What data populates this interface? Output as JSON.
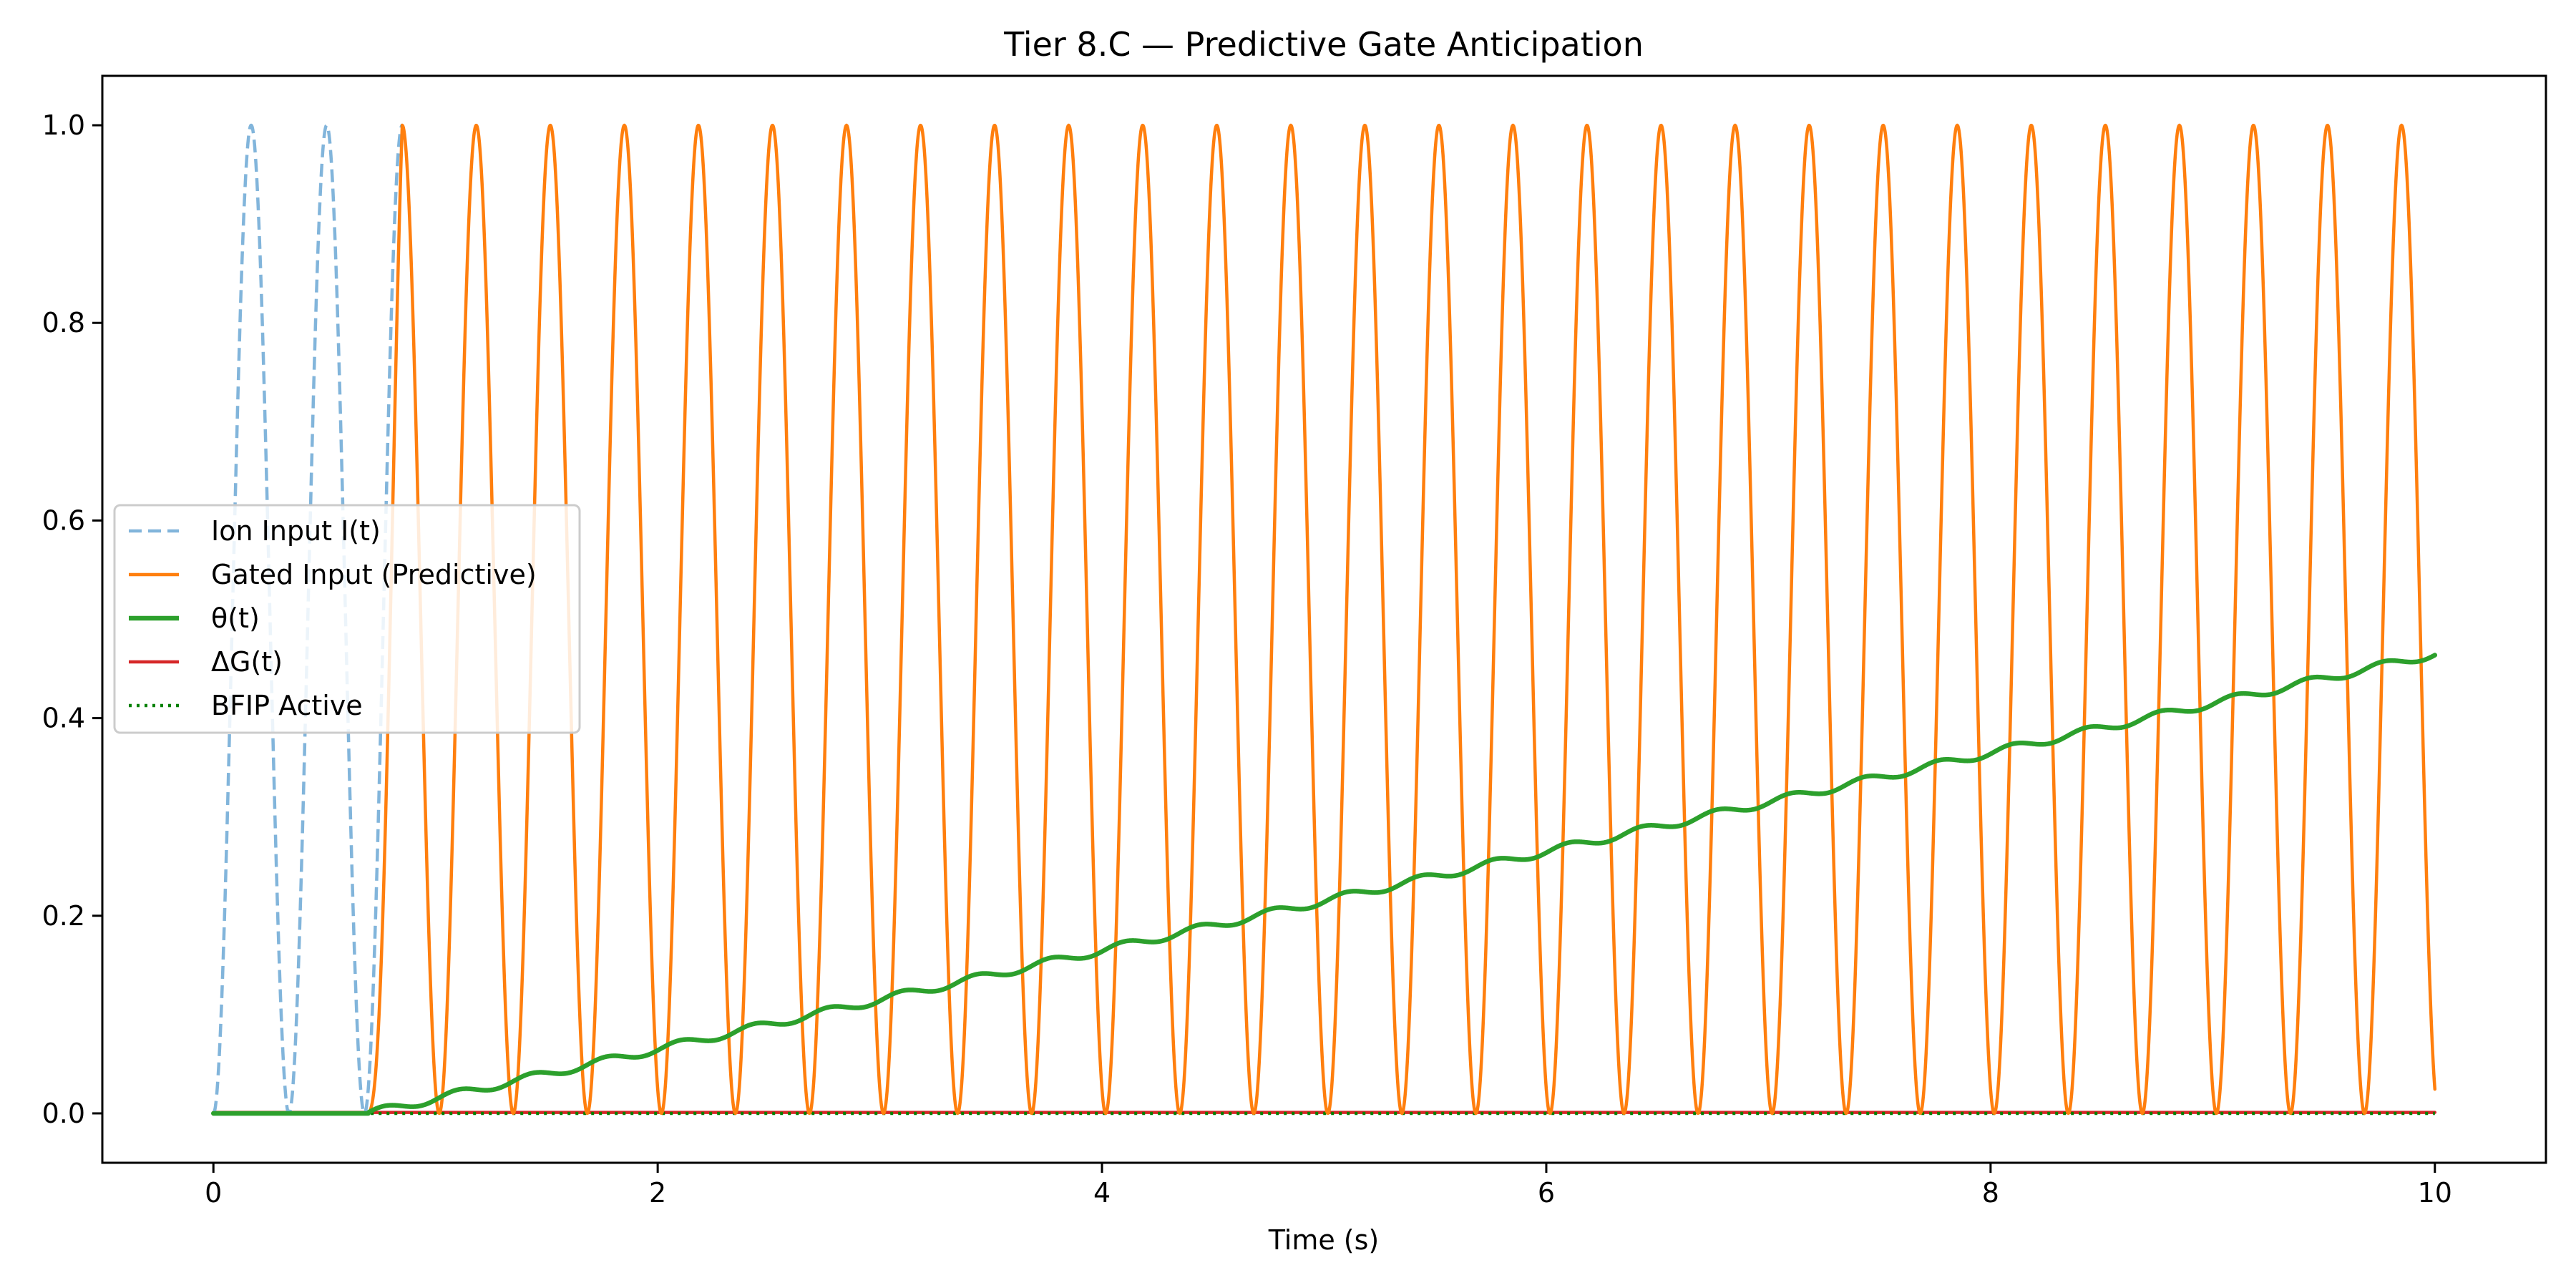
{
  "chart_data": {
    "type": "line",
    "title": "Tier 8.C — Predictive Gate Anticipation",
    "xlabel": "Time (s)",
    "ylabel": "",
    "xlim": [
      -0.5,
      10.5
    ],
    "ylim": [
      -0.05,
      1.05
    ],
    "xticks": [
      0,
      2,
      4,
      6,
      8,
      10
    ],
    "xtick_labels": [
      "0",
      "2",
      "4",
      "6",
      "8",
      "10"
    ],
    "yticks": [
      0.0,
      0.2,
      0.4,
      0.6,
      0.8,
      1.0
    ],
    "ytick_labels": [
      "0.0",
      "0.2",
      "0.4",
      "0.6",
      "0.8",
      "1.0"
    ],
    "grid": false,
    "legend_position": "center-left",
    "series": [
      {
        "name": "Ion Input I(t)",
        "color": "#82b5db",
        "style": "dashed",
        "x": [
          0,
          0.085,
          0.17,
          0.255,
          0.34,
          0.425,
          0.51,
          0.595,
          0.68,
          0.765,
          0.85
        ],
        "y": [
          0.0,
          0.5,
          1.0,
          0.5,
          0.0,
          0.5,
          1.0,
          0.5,
          0.0,
          0.5,
          1.0
        ]
      },
      {
        "name": "Gated Input (Predictive)",
        "color": "#ff7f0e",
        "style": "solid",
        "description_period_s": 0.333,
        "x": [
          0,
          0.7,
          0.85,
          1.0,
          1.17,
          1.33,
          1.5,
          1.67,
          1.83,
          2.0,
          9.83,
          10.0
        ],
        "y": [
          0.0,
          0.0,
          0.97,
          0.0,
          1.0,
          0.0,
          1.0,
          0.0,
          1.0,
          0.0,
          1.0,
          0.0
        ]
      },
      {
        "name": "θ(t)",
        "color": "#2ca02c",
        "style": "solid-thick",
        "x": [
          0,
          0.7,
          1.0,
          2.0,
          3.0,
          4.0,
          5.0,
          6.0,
          7.0,
          8.0,
          9.0,
          10.0
        ],
        "y": [
          0.0,
          0.0,
          0.015,
          0.065,
          0.115,
          0.165,
          0.215,
          0.265,
          0.315,
          0.365,
          0.415,
          0.465
        ]
      },
      {
        "name": "ΔG(t)",
        "color": "#d62728",
        "style": "solid",
        "x": [
          0,
          10
        ],
        "y": [
          0.0,
          0.0
        ]
      },
      {
        "name": "BFIP Active",
        "color": "#008000",
        "style": "dotted",
        "x": [
          0,
          10
        ],
        "y": [
          0.0,
          0.0
        ]
      }
    ]
  }
}
